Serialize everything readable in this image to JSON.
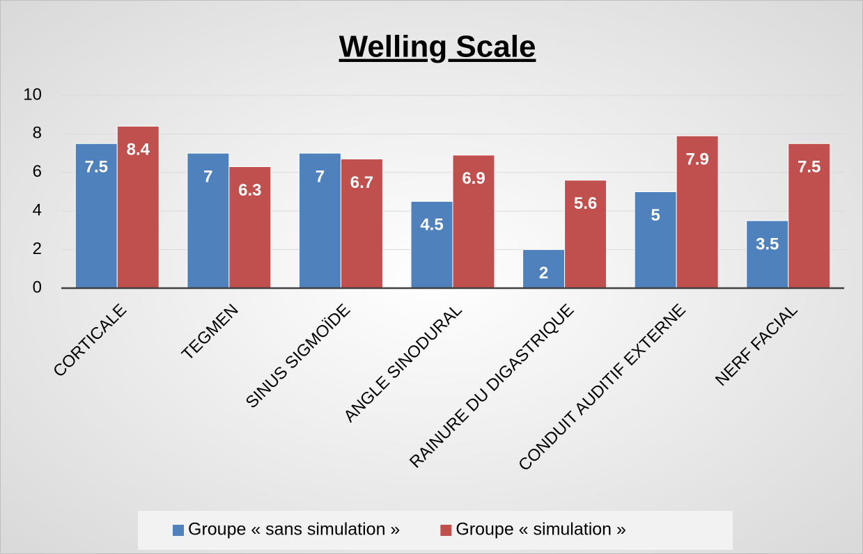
{
  "chart_data": {
    "type": "bar",
    "title": "Welling Scale",
    "categories": [
      "CORTICALE",
      "TEGMEN",
      "SINUS SIGMOÏDE",
      "ANGLE SINODURAL",
      "RAINURE DU DIGASTRIQUE",
      "CONDUIT AUDITIF EXTERNE",
      "NERF FACIAL"
    ],
    "series": [
      {
        "name": "Groupe « sans simulation »",
        "color": "#4f81bd",
        "values": [
          7.5,
          7,
          7,
          4.5,
          2,
          5,
          3.5
        ]
      },
      {
        "name": "Groupe « simulation »",
        "color": "#c0504d",
        "values": [
          8.4,
          6.3,
          6.7,
          6.9,
          5.6,
          7.9,
          7.5
        ]
      }
    ],
    "ylim": [
      0,
      10
    ],
    "yticks": [
      0,
      2,
      4,
      6,
      8,
      10
    ],
    "grid": true,
    "legend": "bottom"
  }
}
